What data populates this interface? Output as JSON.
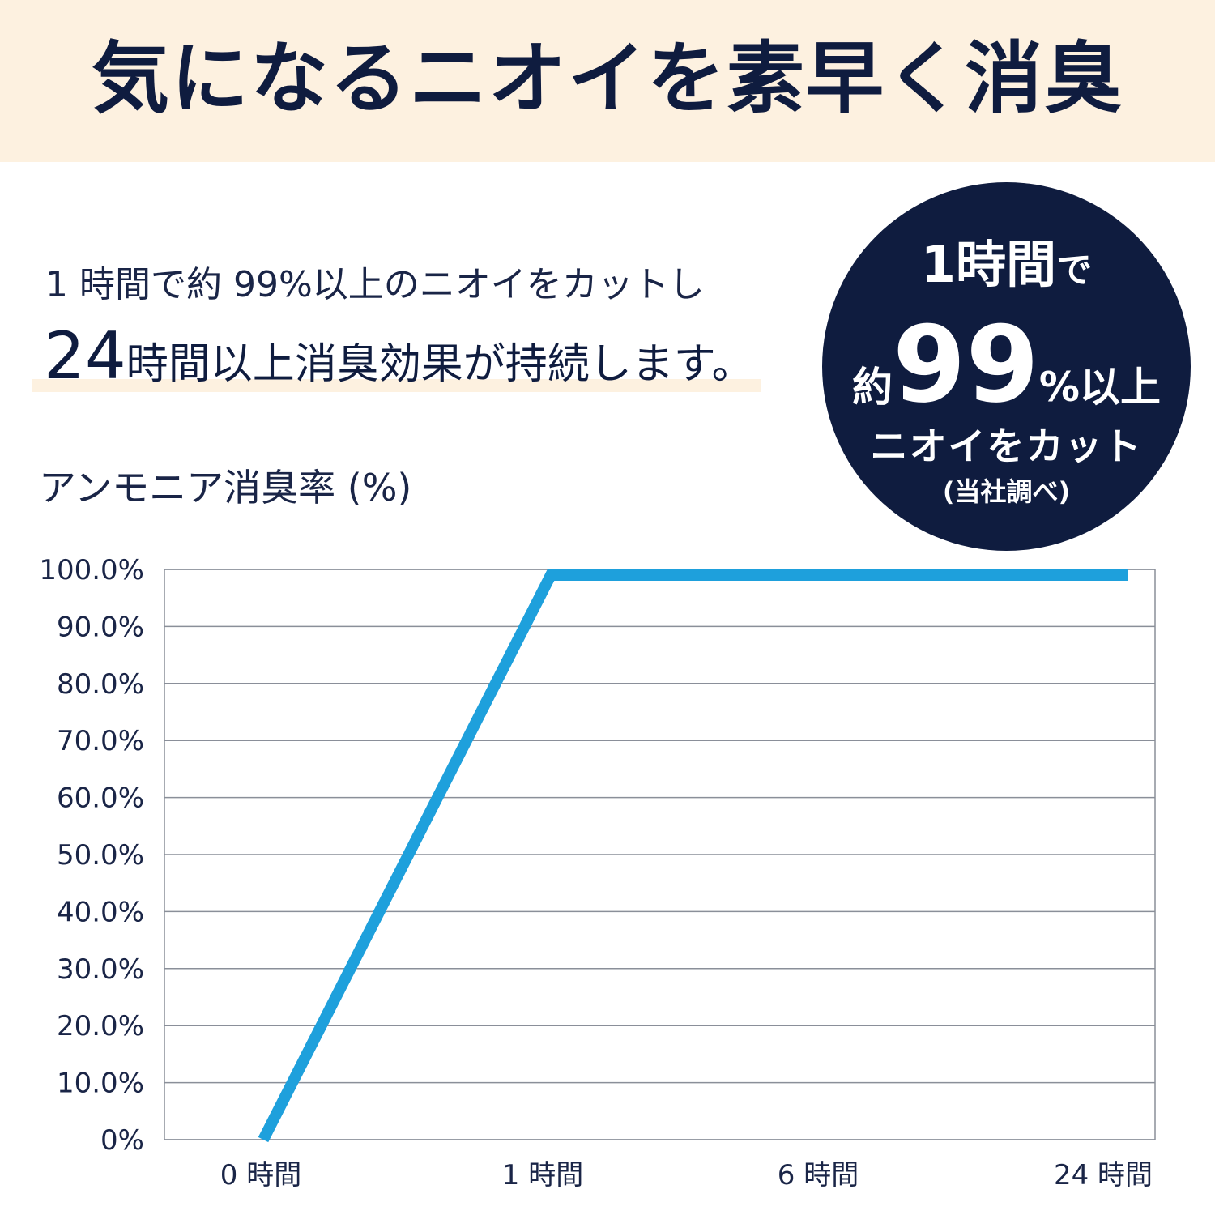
{
  "header": {
    "title": "気になるニオイを素早く消臭"
  },
  "lead": {
    "line1": "1 時間で約 99%以上のニオイをカットし",
    "line2_big": "24",
    "line2_rest": "時間以上消臭効果が持続します。"
  },
  "badge": {
    "l1_a": "1時間",
    "l1_b": "で",
    "l2_a": "約",
    "l2_b": "99",
    "l2_c": "%以上",
    "l3": "ニオイをカット",
    "l4": "(当社調べ)"
  },
  "chart_data": {
    "type": "line",
    "ylabel": "アンモニア消臭率 (%)",
    "categories": [
      "0 時間",
      "1 時間",
      "6 時間",
      "24 時間"
    ],
    "y_ticks": [
      "0%",
      "10.0%",
      "20.0%",
      "30.0%",
      "40.0%",
      "50.0%",
      "60.0%",
      "70.0%",
      "80.0%",
      "90.0%",
      "100.0%"
    ],
    "ylim": [
      0,
      100
    ],
    "grid": true,
    "series": [
      {
        "values": [
          0,
          99,
          99,
          99
        ],
        "color": "#1ea0dc"
      }
    ]
  }
}
